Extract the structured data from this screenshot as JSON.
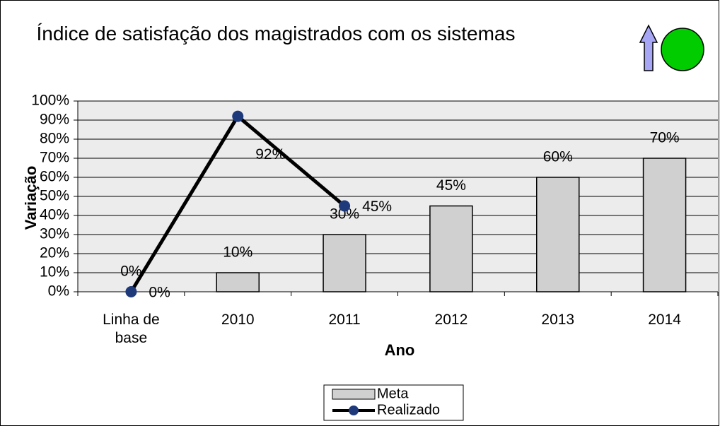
{
  "chart_data": {
    "type": "bar",
    "title": "Índice de satisfação dos magistrados com os sistemas",
    "x_label": "Ano",
    "y_label": "Variação",
    "categories": [
      "Linha de base",
      "2010",
      "2011",
      "2012",
      "2013",
      "2014"
    ],
    "series": [
      {
        "name": "Meta",
        "type": "bar",
        "color": "#d0d0d0",
        "values": [
          0,
          10,
          30,
          45,
          60,
          70
        ],
        "value_labels": [
          "0%",
          "10%",
          "30%",
          "45%",
          "60%",
          "70%"
        ]
      },
      {
        "name": "Realizado",
        "type": "line",
        "color": "#000000",
        "marker_color": "#1f3a7a",
        "values": [
          0,
          92,
          45,
          null,
          null,
          null
        ],
        "value_labels": [
          "0%",
          "92%",
          "45%",
          null,
          null,
          null
        ]
      }
    ],
    "ylim": [
      0,
      100
    ],
    "yticks": [
      {
        "value": 0,
        "label": "0%"
      },
      {
        "value": 10,
        "label": "10%"
      },
      {
        "value": 20,
        "label": "20%"
      },
      {
        "value": 30,
        "label": "30%"
      },
      {
        "value": 40,
        "label": "40%"
      },
      {
        "value": 50,
        "label": "50%"
      },
      {
        "value": 60,
        "label": "60%"
      },
      {
        "value": 70,
        "label": "70%"
      },
      {
        "value": 80,
        "label": "80%"
      },
      {
        "value": 90,
        "label": "90%"
      },
      {
        "value": 100,
        "label": "100%"
      }
    ],
    "grid": true,
    "legend": "bottom"
  }
}
